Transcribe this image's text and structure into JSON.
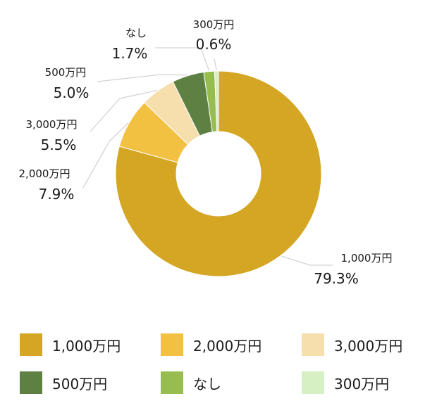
{
  "chart_data": {
    "type": "pie",
    "title": "",
    "donut": true,
    "series": [
      {
        "values": [
          79.3,
          7.9,
          5.5,
          5.0,
          1.7,
          0.6
        ],
        "value_labels": [
          "79.3%",
          "7.9%",
          "5.5%",
          "5.0%",
          "1.7%",
          "0.6%"
        ]
      }
    ],
    "categories": [
      "1,000万円",
      "2,000万円",
      "3,000万円",
      "500万円",
      "なし",
      "300万円"
    ],
    "colors": [
      "#d4a624",
      "#f2c142",
      "#f6dfac",
      "#5e8143",
      "#97bd50",
      "#d6efc3"
    ],
    "legend": {
      "position": "bottom",
      "items": [
        "1,000万円",
        "2,000万円",
        "3,000万円",
        "500万円",
        "なし",
        "300万円"
      ]
    }
  }
}
